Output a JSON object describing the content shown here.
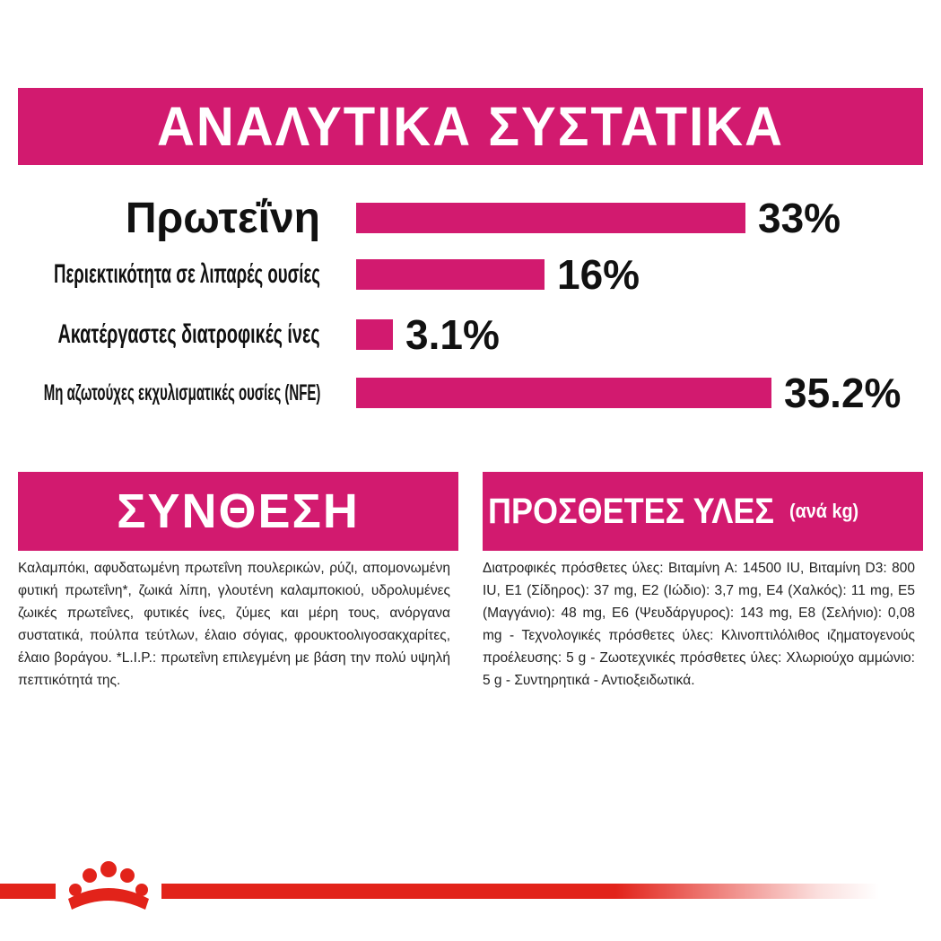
{
  "header": {
    "title": "ΑΝΑΛΥΤΙΚΑ ΣΥΣΤΑΤΙΚΑ"
  },
  "chart_data": {
    "type": "bar",
    "orientation": "horizontal",
    "title": "ΑΝΑΛΥΤΙΚΑ ΣΥΣΤΑΤΙΚΑ",
    "categories": [
      "Πρωτεΐνη",
      "Περιεκτικότητα σε λιπαρές ουσίες",
      "Ακατέργαστες διατροφικές ίνες",
      "Μη αζωτούχες εκχυλισματικές ουσίες (NFE)"
    ],
    "values": [
      33,
      16,
      3.1,
      35.2
    ],
    "value_labels": [
      "33%",
      "16%",
      "3.1%",
      "35.2%"
    ],
    "unit": "%",
    "xlabel": "",
    "ylabel": "",
    "grid": false,
    "legend": "none",
    "bar_color": "#d21a6f"
  },
  "composition": {
    "title": "ΣΥΝΘΕΣΗ",
    "text": "Καλαμπόκι, αφυδατωμένη πρωτεΐνη πουλερικών, ρύζι, απομονωμένη φυτική πρωτεΐνη*, ζωικά λίπη, γλουτένη καλαμποκιού, υδρολυμένες ζωικές πρωτεΐνες, φυτικές ίνες, ζύμες και μέρη τους, ανόργανα συστατικά, πούλπα τεύτλων, έλαιο σόγιας, φρουκτοολιγοσακχαρίτες, έλαιο βοράγου. *L.I.P.: πρωτεΐνη επιλεγμένη με βάση την πολύ υψηλή πεπτικότητά της."
  },
  "additives": {
    "title": "ΠΡΟΣΘΕΤΕΣ ΥΛΕΣ",
    "title_suffix": "(ανά kg)",
    "text": "Διατροφικές πρόσθετες ύλες: Βιταμίνη A: 14500 IU, Βιταμίνη D3: 800 IU, E1 (Σίδηρος): 37 mg, E2 (Ιώδιο): 3,7 mg, E4 (Χαλκός): 11 mg, E5 (Μαγγάνιο): 48 mg, E6 (Ψευδάργυρος): 143 mg, E8 (Σελήνιο): 0,08 mg - Τεχνολογικές πρόσθετες ύλες: Κλινοπτιλόλιθος ιζηματογενούς προέλευσης: 5 g - Ζωοτεχνικές πρόσθετες ύλες: Χλωριούχο αμμώνιο: 5 g - Συντηρητικά - Αντιοξειδωτικά."
  },
  "footer": {
    "logo_icon": "royal-canin-crown-icon",
    "line_color": "#e2231a"
  },
  "colors": {
    "accent": "#d21a6f",
    "brand_red": "#e2231a"
  }
}
